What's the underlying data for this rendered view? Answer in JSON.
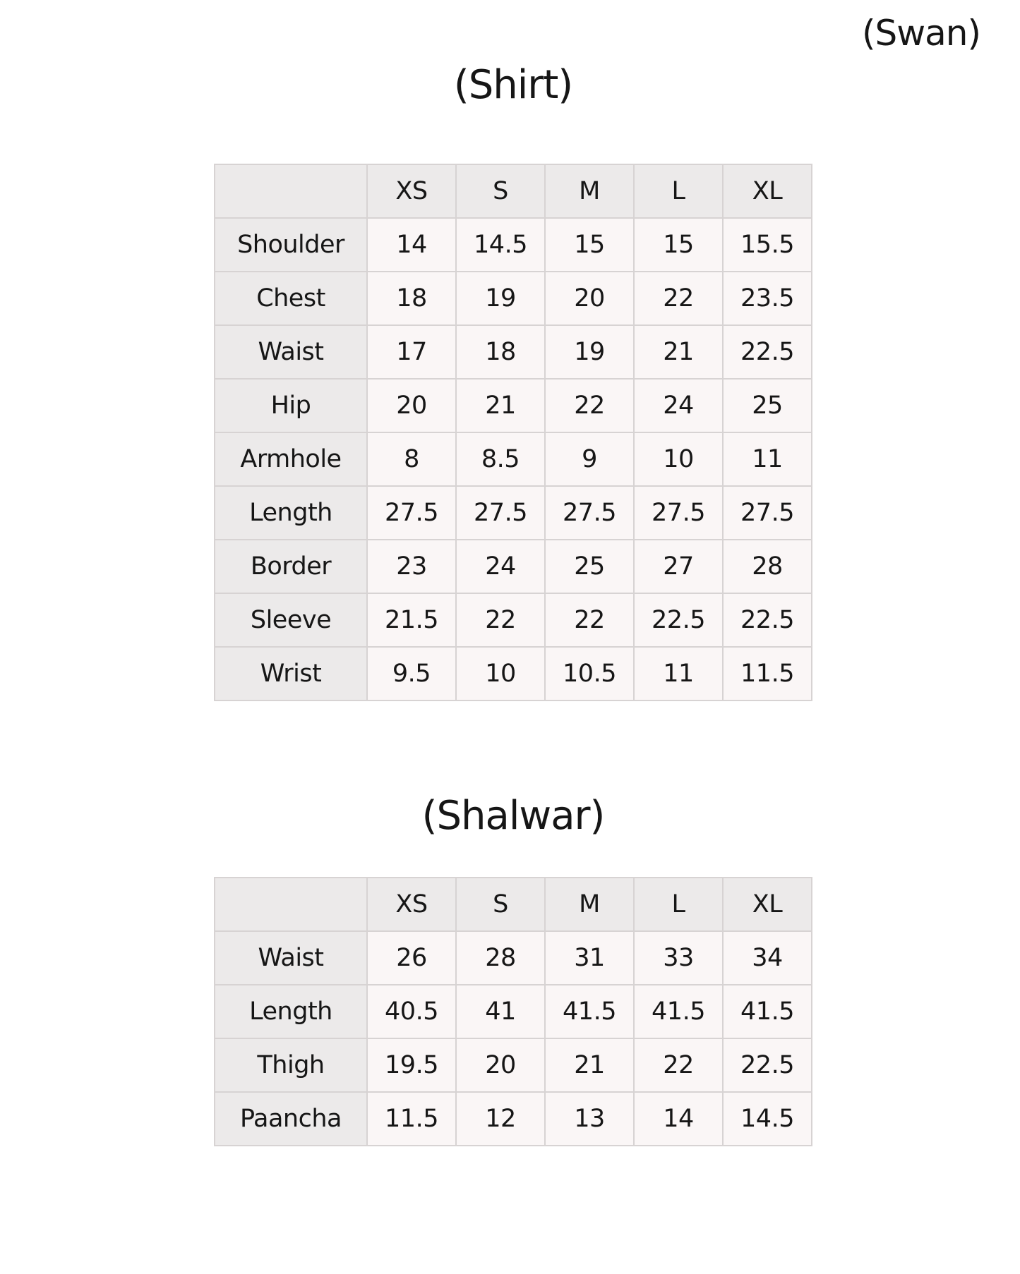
{
  "page": {
    "brand": "(Swan)"
  },
  "colors": {
    "page_bg": "#ffffff",
    "text": "#161616",
    "head_bg": "#eceaea",
    "cell_bg": "#faf6f6",
    "border": "#d7d3d3"
  },
  "shirt_table": {
    "title": "(Shirt)",
    "columns": [
      "",
      "XS",
      "S",
      "M",
      "L",
      "XL"
    ],
    "rows": [
      {
        "label": "Shoulder",
        "values": [
          "14",
          "14.5",
          "15",
          "15",
          "15.5"
        ]
      },
      {
        "label": "Chest",
        "values": [
          "18",
          "19",
          "20",
          "22",
          "23.5"
        ]
      },
      {
        "label": "Waist",
        "values": [
          "17",
          "18",
          "19",
          "21",
          "22.5"
        ]
      },
      {
        "label": "Hip",
        "values": [
          "20",
          "21",
          "22",
          "24",
          "25"
        ]
      },
      {
        "label": "Armhole",
        "values": [
          "8",
          "8.5",
          "9",
          "10",
          "11"
        ]
      },
      {
        "label": "Length",
        "values": [
          "27.5",
          "27.5",
          "27.5",
          "27.5",
          "27.5"
        ]
      },
      {
        "label": "Border",
        "values": [
          "23",
          "24",
          "25",
          "27",
          "28"
        ]
      },
      {
        "label": "Sleeve",
        "values": [
          "21.5",
          "22",
          "22",
          "22.5",
          "22.5"
        ]
      },
      {
        "label": "Wrist",
        "values": [
          "9.5",
          "10",
          "10.5",
          "11",
          "11.5"
        ]
      }
    ]
  },
  "shalwar_table": {
    "title": "(Shalwar)",
    "columns": [
      "",
      "XS",
      "S",
      "M",
      "L",
      "XL"
    ],
    "rows": [
      {
        "label": "Waist",
        "values": [
          "26",
          "28",
          "31",
          "33",
          "34"
        ]
      },
      {
        "label": "Length",
        "values": [
          "40.5",
          "41",
          "41.5",
          "41.5",
          "41.5"
        ]
      },
      {
        "label": "Thigh",
        "values": [
          "19.5",
          "20",
          "21",
          "22",
          "22.5"
        ]
      },
      {
        "label": "Paancha",
        "values": [
          "11.5",
          "12",
          "13",
          "14",
          "14.5"
        ]
      }
    ]
  }
}
